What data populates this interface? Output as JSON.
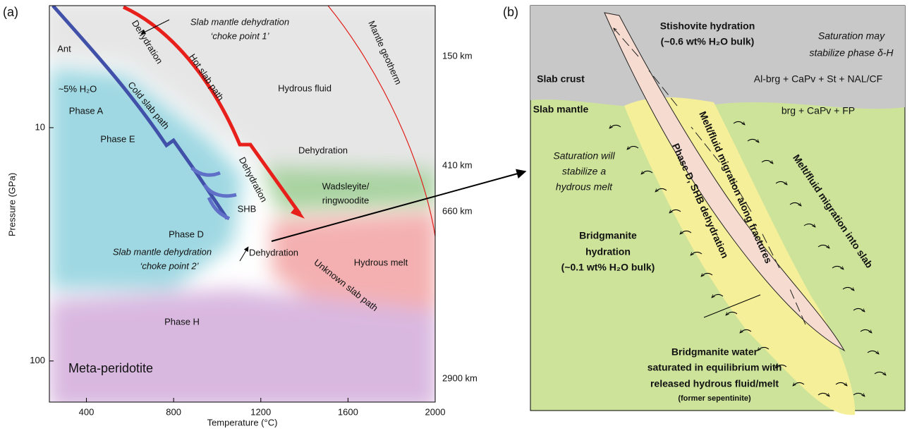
{
  "panel_a": {
    "label": "(a)",
    "x_axis_title": "Temperature (°C)",
    "y_axis_title": "Pressure (GPa)",
    "xlim": [
      230,
      2000
    ],
    "xticks": [
      400,
      800,
      1200,
      1600,
      2000
    ],
    "ylim": [
      3,
      150
    ],
    "yticks": [
      10,
      100
    ],
    "log_y": true,
    "depths": [
      "150 km",
      "410 km",
      "660 km",
      "2900 km"
    ],
    "annotations": [
      "Ant",
      "Dehydration",
      "Slab mantle dehydration",
      "‘choke point 1’",
      "Hot slab path",
      "Mantle geotherm",
      "~5% H₂O",
      "Cold slab path",
      "Hydrous fluid",
      "Phase A",
      "Phase E",
      "Dehydration",
      "Dehydration",
      "Wadsleyite/",
      "ringwoodite",
      "SHB",
      "Phase D",
      "Slab mantle dehydration",
      "‘choke point 2’",
      "Dehydration",
      "Hydrous melt",
      "Unknown slab path",
      "Phase H",
      "Meta-peridotite"
    ]
  },
  "panel_b": {
    "label": "(b)",
    "annotations": [
      "Stishovite hydration",
      "(~0.6 wt% H₂O bulk)",
      "Saturation may",
      "stabilize phase δ-H",
      "Slab crust",
      "Al-brg + CaPv + St + NAL/CF",
      "Slab mantle",
      "brg + CaPv + FP",
      "Saturation will",
      "stabilize a",
      "hydrous melt",
      "Melt/fluid migration along fractures",
      "Phase D, SHB dehydration",
      "Melt/fluid migration into slab",
      "Bridgmanite",
      "hydration",
      "(~0.1 wt% H₂O bulk)",
      "Bridgmanite water",
      "saturated in equilibrium with",
      "released hydrous fluid/melt",
      "(former sepentinite)"
    ]
  }
}
